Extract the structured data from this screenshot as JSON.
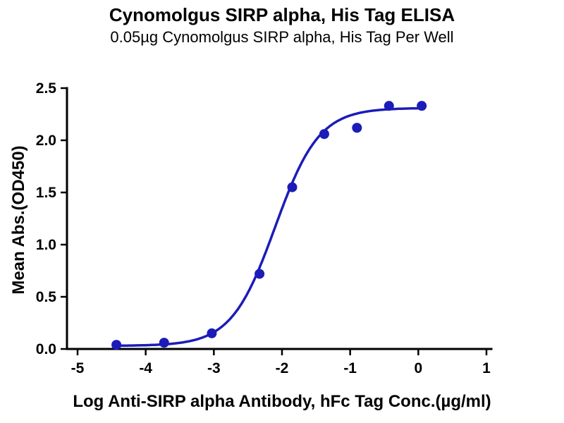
{
  "chart_data": {
    "type": "scatter",
    "title": "Cynomolgus SIRP alpha, His Tag ELISA",
    "subtitle": "0.05µg Cynomolgus SIRP alpha, His Tag Per Well",
    "xlabel": "Log Anti-SIRP alpha Antibody, hFc Tag Conc.(µg/ml)",
    "ylabel": "Mean Abs.(OD450)",
    "xlim": [
      -5,
      1
    ],
    "ylim": [
      0,
      2.5
    ],
    "x_ticks": [
      -5,
      -4,
      -3,
      -2,
      -1,
      0,
      1
    ],
    "x_tick_labels": [
      "-5",
      "-4",
      "-3",
      "-2",
      "-1",
      "0",
      "1"
    ],
    "y_ticks": [
      0,
      0.5,
      1,
      1.5,
      2,
      2.5
    ],
    "y_tick_labels": [
      "0.0",
      "0.5",
      "1.0",
      "1.5",
      "2.0",
      "2.5"
    ],
    "series": [
      {
        "name": "Anti-SIRP alpha Antibody, hFc Tag",
        "points": [
          {
            "x": -4.43,
            "y": 0.04
          },
          {
            "x": -3.73,
            "y": 0.06
          },
          {
            "x": -3.03,
            "y": 0.15
          },
          {
            "x": -2.33,
            "y": 0.72
          },
          {
            "x": -1.85,
            "y": 1.55
          },
          {
            "x": -1.38,
            "y": 2.06
          },
          {
            "x": -0.9,
            "y": 2.12
          },
          {
            "x": -0.43,
            "y": 2.33
          },
          {
            "x": 0.05,
            "y": 2.33
          }
        ]
      }
    ],
    "fit_curve": {
      "model": "4PL",
      "bottom": 0.03,
      "top": 2.31,
      "log_ec50": -2.1,
      "hill_slope": 1.35,
      "x_start": -4.45,
      "x_end": 0.08
    },
    "colors": {
      "points": "#1c1cb8",
      "curve": "#1c1cb8",
      "axis": "#000000",
      "text": "#000000",
      "background": "#ffffff"
    },
    "grid": false,
    "legend": false
  }
}
